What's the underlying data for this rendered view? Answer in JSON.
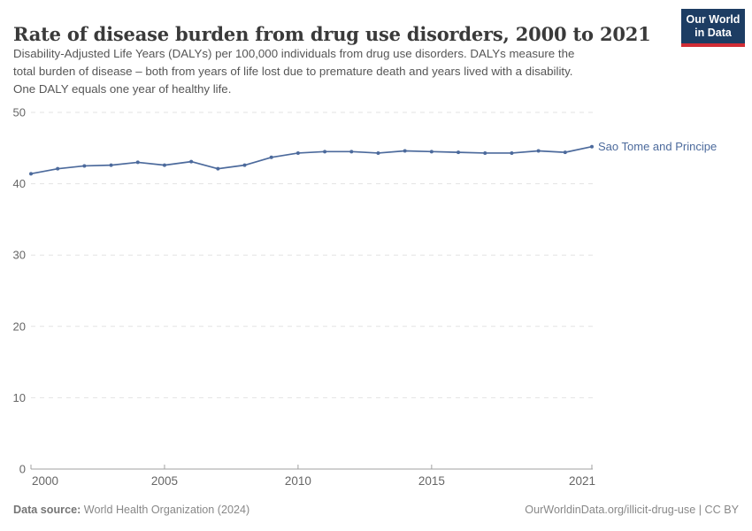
{
  "header": {
    "title": "Rate of disease burden from drug use disorders, 2000 to 2021",
    "subtitle_lines": [
      "Disability-Adjusted Life Years (DALYs) per 100,000 individuals from drug use disorders. DALYs measure the",
      "total burden of disease – both from years of life lost due to premature death and years lived with a disability.",
      "One DALY equals one year of healthy life."
    ],
    "logo": {
      "line1": "Our World",
      "line2": "in Data",
      "bg_color": "#1d3d63",
      "accent_color": "#d12d35"
    }
  },
  "chart_data": {
    "type": "line",
    "title": "Rate of disease burden from drug use disorders, 2000 to 2021",
    "xlabel": "",
    "ylabel": "",
    "xlim": [
      2000,
      2021
    ],
    "ylim": [
      0,
      50
    ],
    "x_ticks": [
      2000,
      2005,
      2010,
      2015,
      2021
    ],
    "y_ticks": [
      0,
      10,
      20,
      30,
      40,
      50
    ],
    "grid": "horizontal-dashed",
    "legend_position": "end-of-line-label",
    "series": [
      {
        "name": "Sao Tome and Principe",
        "color": "#4c6a9c",
        "x": [
          2000,
          2001,
          2002,
          2003,
          2004,
          2005,
          2006,
          2007,
          2008,
          2009,
          2010,
          2011,
          2012,
          2013,
          2014,
          2015,
          2016,
          2017,
          2018,
          2019,
          2020,
          2021
        ],
        "values": [
          41.4,
          42.1,
          42.5,
          42.6,
          43.0,
          42.6,
          43.1,
          42.1,
          42.6,
          43.7,
          44.3,
          44.5,
          44.5,
          44.3,
          44.6,
          44.5,
          44.4,
          44.3,
          44.3,
          44.6,
          44.4,
          45.2
        ]
      }
    ],
    "colors": {
      "gridline": "#e3e3e3",
      "axis_line": "#a1a1a1",
      "tick_label": "#666666"
    }
  },
  "footer": {
    "datasource_label": "Data source:",
    "datasource_value": "World Health Organization (2024)",
    "link": "OurWorldinData.org/illicit-drug-use | CC BY"
  }
}
